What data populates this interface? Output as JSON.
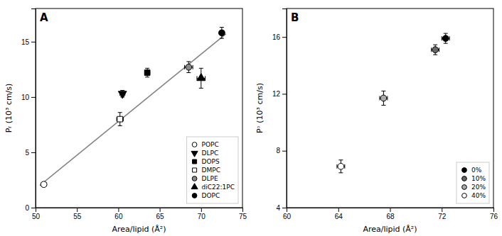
{
  "chart_data": [
    {
      "type": "scatter",
      "title": "A",
      "xlabel": "Area/lipid (Å²)",
      "ylabel": "Pᵣ (10³ cm/s)",
      "xlim": [
        50,
        75
      ],
      "ylim": [
        0,
        18
      ],
      "xticks": [
        50,
        55,
        60,
        65,
        70,
        75
      ],
      "yticks": [
        0,
        5,
        10,
        15
      ],
      "grid": false,
      "legend": "lower right",
      "series": [
        {
          "type": "line",
          "color": "gray",
          "x": [
            50.5,
            73.0
          ],
          "values": [
            2.0,
            15.7
          ]
        },
        {
          "name": "POPC",
          "marker": "circle",
          "color": "white",
          "x": [
            51.0
          ],
          "values": [
            2.1
          ],
          "xerr": [
            0.3
          ],
          "yerr": [
            0.2
          ]
        },
        {
          "name": "DLPC",
          "marker": "triangle-down",
          "color": "black",
          "x": [
            60.5
          ],
          "values": [
            10.3
          ],
          "xerr": [
            0.3
          ],
          "yerr": [
            0.3
          ]
        },
        {
          "name": "DOPS",
          "marker": "square",
          "color": "black",
          "x": [
            63.5
          ],
          "values": [
            12.2
          ],
          "xerr": [
            0.3
          ],
          "yerr": [
            0.4
          ]
        },
        {
          "name": "DMPC",
          "marker": "square",
          "color": "white",
          "x": [
            60.2
          ],
          "values": [
            8.0
          ],
          "xerr": [
            0.4
          ],
          "yerr": [
            0.6
          ]
        },
        {
          "name": "DLPE",
          "marker": "circle",
          "color": "#888888",
          "x": [
            68.5
          ],
          "values": [
            12.7
          ],
          "xerr": [
            0.5
          ],
          "yerr": [
            0.5
          ]
        },
        {
          "name": "diC22:1PC",
          "marker": "triangle-up",
          "color": "black",
          "x": [
            70.0
          ],
          "values": [
            11.7
          ],
          "xerr": [
            0.5
          ],
          "yerr": [
            0.9
          ]
        },
        {
          "name": "DOPC",
          "marker": "circle",
          "color": "black",
          "x": [
            72.5
          ],
          "values": [
            15.8
          ],
          "xerr": [
            0.3
          ],
          "yerr": [
            0.5
          ]
        }
      ]
    },
    {
      "type": "scatter",
      "title": "B",
      "xlabel": "Area/lipid (Å²)",
      "ylabel": "Pᵓ (10³ cm/s)",
      "xlim": [
        60,
        76
      ],
      "ylim": [
        4,
        18
      ],
      "xticks": [
        60,
        64,
        68,
        72,
        76
      ],
      "yticks": [
        4,
        8,
        12,
        16
      ],
      "grid": false,
      "legend": "lower right",
      "series": [
        {
          "name": "0%",
          "marker": "circle",
          "color": "black",
          "x": [
            72.3
          ],
          "values": [
            15.9
          ],
          "xerr": [
            0.3
          ],
          "yerr": [
            0.35
          ]
        },
        {
          "name": "10%",
          "marker": "circle",
          "color": "#666666",
          "x": [
            71.5
          ],
          "values": [
            15.1
          ],
          "xerr": [
            0.3
          ],
          "yerr": [
            0.35
          ]
        },
        {
          "name": "20%",
          "marker": "circle",
          "color": "#aaaaaa",
          "x": [
            67.5
          ],
          "values": [
            11.7
          ],
          "xerr": [
            0.3
          ],
          "yerr": [
            0.5
          ]
        },
        {
          "name": "40%",
          "marker": "circle",
          "color": "white",
          "x": [
            64.2
          ],
          "values": [
            6.9
          ],
          "xerr": [
            0.3
          ],
          "yerr": [
            0.45
          ]
        }
      ]
    }
  ]
}
